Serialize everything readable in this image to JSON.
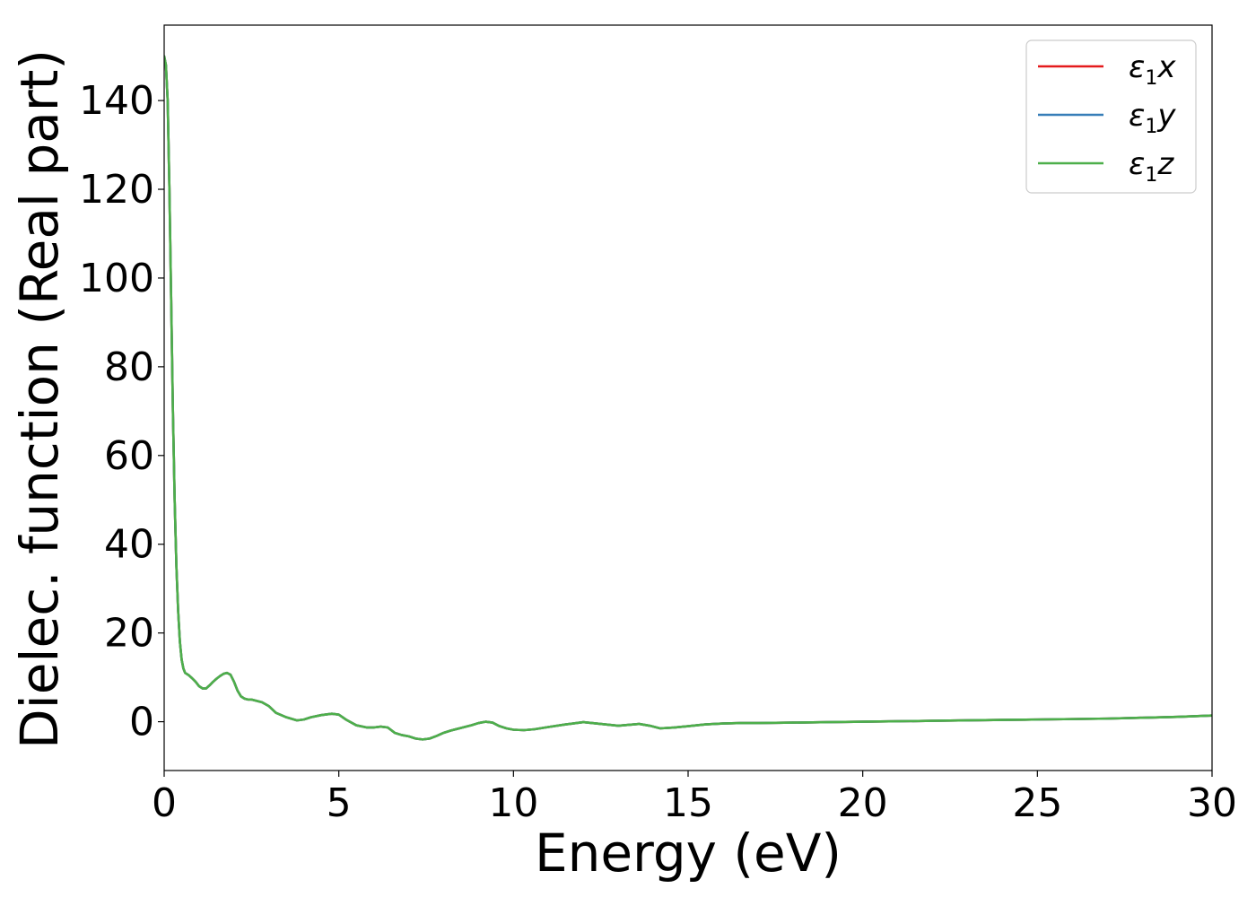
{
  "chart_data": {
    "type": "line",
    "xlabel": "Energy (eV)",
    "ylabel": "Dielec. function (Real part)",
    "xlim": [
      0,
      30
    ],
    "ylim": [
      -11,
      157
    ],
    "xticks": [
      0,
      5,
      10,
      15,
      20,
      25,
      30
    ],
    "yticks": [
      0,
      20,
      40,
      60,
      80,
      100,
      120,
      140
    ],
    "grid": false,
    "legend_position": "top-right",
    "legend": [
      {
        "base": "ε",
        "sub": "1",
        "suffix": "x",
        "color": "#e41a1c"
      },
      {
        "base": "ε",
        "sub": "1",
        "suffix": "y",
        "color": "#377eb8"
      },
      {
        "base": "ε",
        "sub": "1",
        "suffix": "z",
        "color": "#4daf4a"
      }
    ],
    "x": [
      0,
      0.05,
      0.1,
      0.15,
      0.2,
      0.25,
      0.3,
      0.35,
      0.4,
      0.45,
      0.5,
      0.55,
      0.6,
      0.7,
      0.8,
      0.9,
      1.0,
      1.1,
      1.2,
      1.3,
      1.4,
      1.5,
      1.6,
      1.7,
      1.8,
      1.9,
      2.0,
      2.1,
      2.2,
      2.3,
      2.4,
      2.5,
      2.6,
      2.8,
      3.0,
      3.2,
      3.5,
      3.8,
      4.0,
      4.2,
      4.5,
      4.8,
      5.0,
      5.2,
      5.5,
      5.8,
      6.0,
      6.2,
      6.4,
      6.6,
      6.8,
      7.0,
      7.2,
      7.4,
      7.6,
      7.8,
      8.0,
      8.2,
      8.5,
      8.8,
      9.0,
      9.2,
      9.4,
      9.6,
      9.8,
      10.0,
      10.3,
      10.6,
      11.0,
      11.5,
      12.0,
      12.5,
      13.0,
      13.3,
      13.6,
      13.9,
      14.2,
      14.6,
      15.0,
      15.5,
      16.0,
      16.5,
      17.0,
      18.0,
      19.0,
      20.0,
      21.0,
      22.0,
      23.0,
      24.0,
      25.0,
      26.0,
      27.0,
      28.0,
      29.0,
      30.0
    ],
    "series": [
      {
        "name": "ε1x",
        "color": "#e41a1c",
        "values": [
          150,
          148,
          140,
          120,
          95,
          70,
          50,
          35,
          25,
          18,
          14,
          12,
          11,
          10.5,
          9.8,
          9,
          8,
          7.5,
          7.5,
          8.2,
          9,
          9.7,
          10.3,
          10.8,
          11,
          10.6,
          9,
          7,
          5.7,
          5.2,
          5,
          5,
          4.8,
          4.4,
          3.5,
          2,
          1,
          0.3,
          0.5,
          1,
          1.5,
          1.8,
          1.6,
          0.5,
          -0.8,
          -1.3,
          -1.3,
          -1.1,
          -1.3,
          -2.5,
          -3,
          -3.3,
          -3.8,
          -4,
          -3.8,
          -3.2,
          -2.5,
          -2,
          -1.4,
          -0.8,
          -0.3,
          0,
          -0.2,
          -1,
          -1.5,
          -1.8,
          -1.9,
          -1.7,
          -1.2,
          -0.6,
          -0.1,
          -0.5,
          -0.9,
          -0.7,
          -0.5,
          -0.9,
          -1.5,
          -1.3,
          -1,
          -0.6,
          -0.4,
          -0.3,
          -0.3,
          -0.2,
          -0.1,
          0,
          0.1,
          0.2,
          0.3,
          0.4,
          0.5,
          0.6,
          0.7,
          0.9,
          1.1,
          1.4
        ]
      },
      {
        "name": "ε1y",
        "color": "#377eb8",
        "values": [
          150,
          148,
          140,
          120,
          95,
          70,
          50,
          35,
          25,
          18,
          14,
          12,
          11,
          10.5,
          9.8,
          9,
          8,
          7.5,
          7.5,
          8.2,
          9,
          9.7,
          10.3,
          10.8,
          11,
          10.6,
          9,
          7,
          5.7,
          5.2,
          5,
          5,
          4.8,
          4.4,
          3.5,
          2,
          1,
          0.3,
          0.5,
          1,
          1.5,
          1.8,
          1.6,
          0.5,
          -0.8,
          -1.3,
          -1.3,
          -1.1,
          -1.3,
          -2.5,
          -3,
          -3.3,
          -3.8,
          -4,
          -3.8,
          -3.2,
          -2.5,
          -2,
          -1.4,
          -0.8,
          -0.3,
          0,
          -0.2,
          -1,
          -1.5,
          -1.8,
          -1.9,
          -1.7,
          -1.2,
          -0.6,
          -0.1,
          -0.5,
          -0.9,
          -0.7,
          -0.5,
          -0.9,
          -1.5,
          -1.3,
          -1,
          -0.6,
          -0.4,
          -0.3,
          -0.3,
          -0.2,
          -0.1,
          0,
          0.1,
          0.2,
          0.3,
          0.4,
          0.5,
          0.6,
          0.7,
          0.9,
          1.1,
          1.4
        ]
      },
      {
        "name": "ε1z",
        "color": "#4daf4a",
        "values": [
          150,
          148,
          140,
          120,
          95,
          70,
          50,
          35,
          25,
          18,
          14,
          12,
          11,
          10.5,
          9.8,
          9,
          8,
          7.5,
          7.5,
          8.2,
          9,
          9.7,
          10.3,
          10.8,
          11,
          10.6,
          9,
          7,
          5.7,
          5.2,
          5,
          5,
          4.8,
          4.4,
          3.5,
          2,
          1,
          0.3,
          0.5,
          1,
          1.5,
          1.8,
          1.6,
          0.5,
          -0.8,
          -1.3,
          -1.3,
          -1.1,
          -1.3,
          -2.5,
          -3,
          -3.3,
          -3.8,
          -4,
          -3.8,
          -3.2,
          -2.5,
          -2,
          -1.4,
          -0.8,
          -0.3,
          0,
          -0.2,
          -1,
          -1.5,
          -1.8,
          -1.9,
          -1.7,
          -1.2,
          -0.6,
          -0.1,
          -0.5,
          -0.9,
          -0.7,
          -0.5,
          -0.9,
          -1.5,
          -1.3,
          -1,
          -0.6,
          -0.4,
          -0.3,
          -0.3,
          -0.2,
          -0.1,
          0,
          0.1,
          0.2,
          0.3,
          0.4,
          0.5,
          0.6,
          0.7,
          0.9,
          1.1,
          1.4
        ]
      }
    ]
  }
}
